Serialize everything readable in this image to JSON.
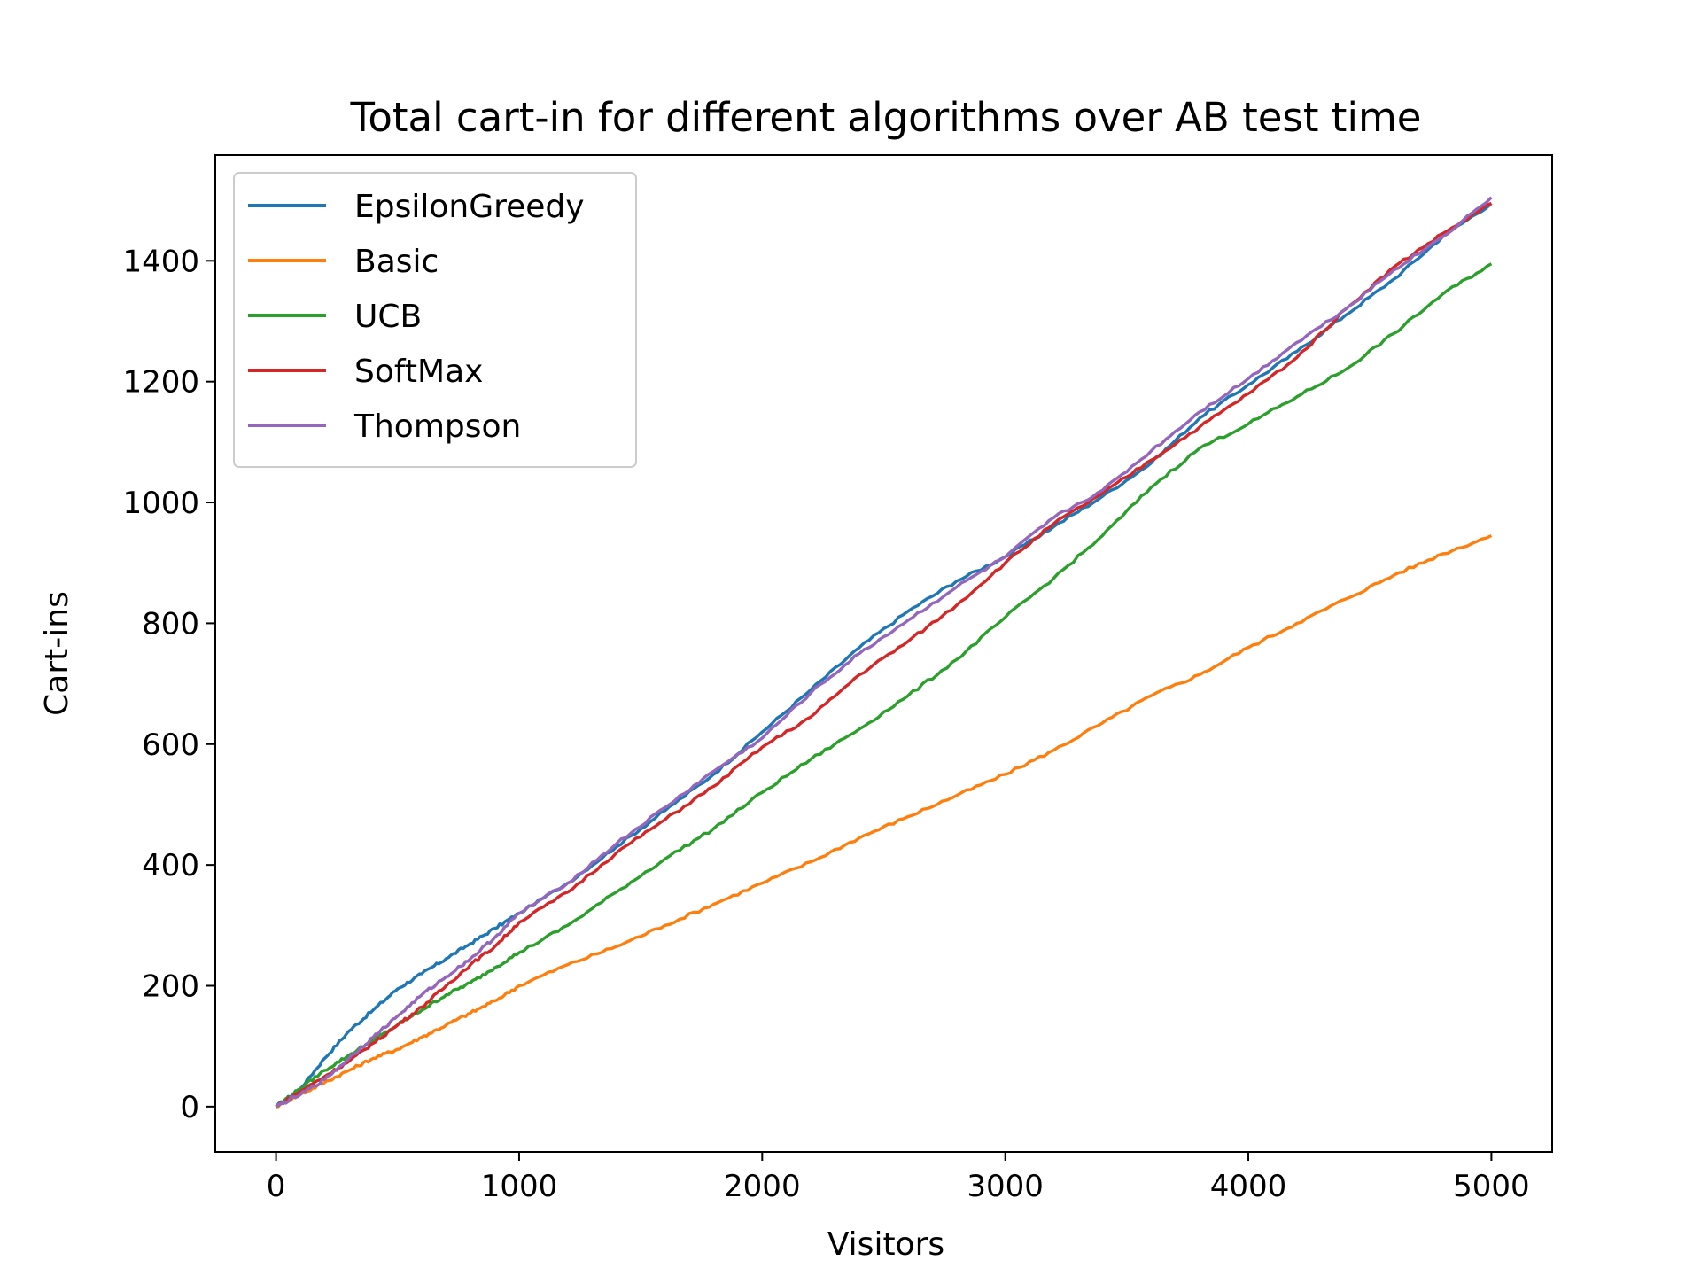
{
  "chart_data": {
    "type": "line",
    "title": "Total cart-in for different algorithms over AB test time",
    "xlabel": "Visitors",
    "ylabel": "Cart-ins",
    "xlim": [
      -250,
      5250
    ],
    "ylim": [
      -75,
      1575
    ],
    "xticks": [
      0,
      1000,
      2000,
      3000,
      4000,
      5000
    ],
    "yticks": [
      0,
      200,
      400,
      600,
      800,
      1000,
      1200,
      1400
    ],
    "xtick_labels": [
      "0",
      "1000",
      "2000",
      "3000",
      "4000",
      "5000"
    ],
    "ytick_labels": [
      "0",
      "200",
      "400",
      "600",
      "800",
      "1000",
      "1200",
      "1400"
    ],
    "legend_position": "top-left",
    "series": [
      {
        "name": "EpsilonGreedy",
        "color": "#1f77b4",
        "x": [
          0,
          100,
          200,
          300,
          400,
          500,
          600,
          700,
          800,
          900,
          1000,
          1200,
          1400,
          1600,
          1800,
          2000,
          2200,
          2400,
          2600,
          2800,
          3000,
          3200,
          3400,
          3600,
          3800,
          4000,
          4200,
          4400,
          4600,
          4800,
          5000
        ],
        "values": [
          0,
          30,
          80,
          125,
          160,
          195,
          220,
          245,
          270,
          295,
          320,
          370,
          430,
          490,
          550,
          620,
          690,
          760,
          820,
          870,
          910,
          960,
          1010,
          1065,
          1140,
          1195,
          1250,
          1310,
          1370,
          1440,
          1495
        ]
      },
      {
        "name": "Basic",
        "color": "#ff7f0e",
        "x": [
          0,
          100,
          200,
          300,
          400,
          500,
          600,
          700,
          800,
          900,
          1000,
          1200,
          1400,
          1600,
          1800,
          2000,
          2200,
          2400,
          2600,
          2800,
          3000,
          3200,
          3400,
          3600,
          3800,
          4000,
          4200,
          4400,
          4600,
          4800,
          5000
        ],
        "values": [
          0,
          20,
          40,
          60,
          80,
          95,
          115,
          135,
          155,
          175,
          200,
          235,
          265,
          300,
          335,
          370,
          405,
          445,
          480,
          515,
          550,
          590,
          635,
          680,
          715,
          760,
          800,
          840,
          880,
          915,
          945
        ]
      },
      {
        "name": "UCB",
        "color": "#2ca02c",
        "x": [
          0,
          100,
          200,
          300,
          400,
          500,
          600,
          700,
          800,
          900,
          1000,
          1200,
          1400,
          1600,
          1800,
          2000,
          2200,
          2400,
          2600,
          2800,
          3000,
          3200,
          3400,
          3600,
          3800,
          4000,
          4200,
          4400,
          4600,
          4800,
          5000
        ],
        "values": [
          0,
          30,
          60,
          85,
          110,
          135,
          160,
          185,
          205,
          230,
          255,
          300,
          355,
          410,
          460,
          520,
          575,
          625,
          680,
          740,
          810,
          875,
          945,
          1025,
          1090,
          1130,
          1175,
          1220,
          1280,
          1345,
          1395
        ]
      },
      {
        "name": "SoftMax",
        "color": "#d62728",
        "x": [
          0,
          100,
          200,
          300,
          400,
          500,
          600,
          700,
          800,
          900,
          1000,
          1200,
          1400,
          1600,
          1800,
          2000,
          2200,
          2400,
          2600,
          2800,
          3000,
          3200,
          3400,
          3600,
          3800,
          4000,
          4200,
          4400,
          4600,
          4800,
          5000
        ],
        "values": [
          0,
          25,
          50,
          75,
          105,
          135,
          165,
          200,
          235,
          265,
          305,
          355,
          420,
          475,
          530,
          595,
          645,
          715,
          770,
          830,
          900,
          965,
          1015,
          1070,
          1125,
          1180,
          1240,
          1320,
          1390,
          1445,
          1495
        ]
      },
      {
        "name": "Thompson",
        "color": "#9467bd",
        "x": [
          0,
          100,
          200,
          300,
          400,
          500,
          600,
          700,
          800,
          900,
          1000,
          1200,
          1400,
          1600,
          1800,
          2000,
          2200,
          2400,
          2600,
          2800,
          3000,
          3200,
          3400,
          3600,
          3800,
          4000,
          4200,
          4400,
          4600,
          4800,
          5000
        ],
        "values": [
          0,
          20,
          45,
          80,
          115,
          150,
          185,
          215,
          245,
          280,
          320,
          370,
          435,
          495,
          555,
          610,
          685,
          750,
          805,
          860,
          910,
          975,
          1020,
          1085,
          1150,
          1205,
          1265,
          1320,
          1385,
          1440,
          1505
        ]
      }
    ]
  }
}
